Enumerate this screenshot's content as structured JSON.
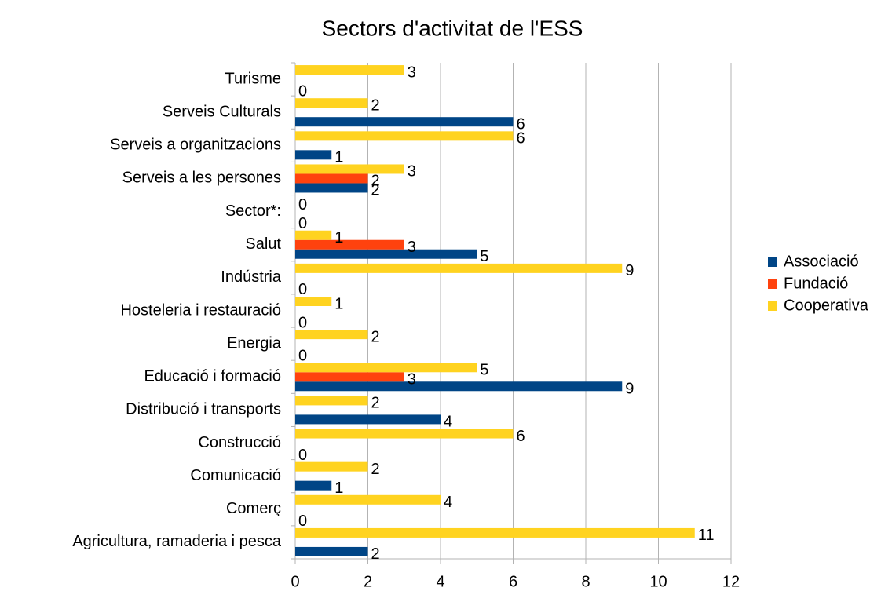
{
  "chart_data": {
    "type": "bar",
    "orientation": "horizontal",
    "title": "Sectors d'activitat de l'ESS",
    "categories": [
      "Agricultura, ramaderia i pesca",
      "Comerç",
      "Comunicació",
      "Construcció",
      "Distribució i transports",
      "Educació i formació",
      "Energia",
      "Hosteleria i restauració",
      "Indústria",
      "Salut",
      "Sector*:",
      "Serveis a les persones",
      "Serveis a organitzacions",
      "Serveis Culturals",
      "Turisme"
    ],
    "series": [
      {
        "name": "Associació",
        "color": "#004586",
        "values": [
          2,
          0,
          1,
          0,
          4,
          9,
          0,
          0,
          0,
          5,
          0,
          2,
          1,
          6,
          0
        ]
      },
      {
        "name": "Fundació",
        "color": "#ff420e",
        "values": [
          null,
          null,
          null,
          null,
          null,
          3,
          null,
          null,
          null,
          3,
          null,
          2,
          null,
          null,
          null
        ]
      },
      {
        "name": "Cooperativa",
        "color": "#ffd320",
        "values": [
          11,
          4,
          2,
          6,
          2,
          5,
          2,
          1,
          9,
          1,
          0,
          3,
          6,
          2,
          3
        ]
      }
    ],
    "xlim": [
      0,
      12
    ],
    "xticks": [
      0,
      2,
      4,
      6,
      8,
      10,
      12
    ],
    "grid": true,
    "legend": "right"
  }
}
